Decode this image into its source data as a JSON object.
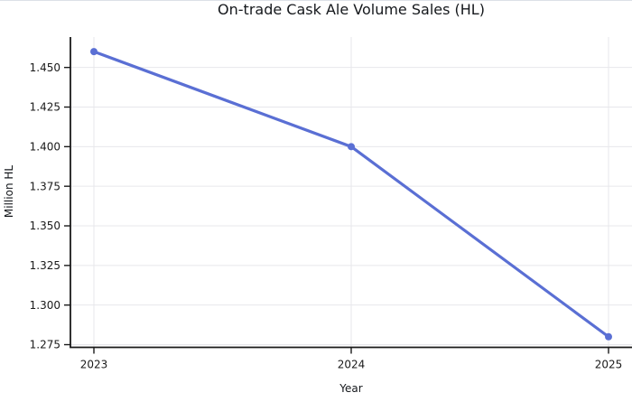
{
  "figure": {
    "background": "#ffffff",
    "top_border_color": "#dce0e7"
  },
  "chart_data": {
    "type": "line",
    "title": "On-trade Cask Ale Volume Sales (HL)",
    "xlabel": "Year",
    "ylabel": "Million HL",
    "categories": [
      "2023",
      "2024",
      "2025"
    ],
    "values": [
      1.46,
      1.4,
      1.28
    ],
    "line_color": "#5a6fd4",
    "marker": "circle",
    "ylim": [
      1.2733,
      1.4692
    ],
    "y_ticks": {
      "values": [
        1.275,
        1.3,
        1.325,
        1.35,
        1.375,
        1.4,
        1.425,
        1.45
      ],
      "labels": [
        "1.275",
        "1.300",
        "1.325",
        "1.350",
        "1.375",
        "1.400",
        "1.425",
        "1.450"
      ]
    },
    "grid": {
      "horizontal": true,
      "vertical": true,
      "color": "#e7e7eb"
    },
    "axis_color": "#1a1a1a",
    "tick_label_color": "#1a1a1a",
    "legend": null
  }
}
